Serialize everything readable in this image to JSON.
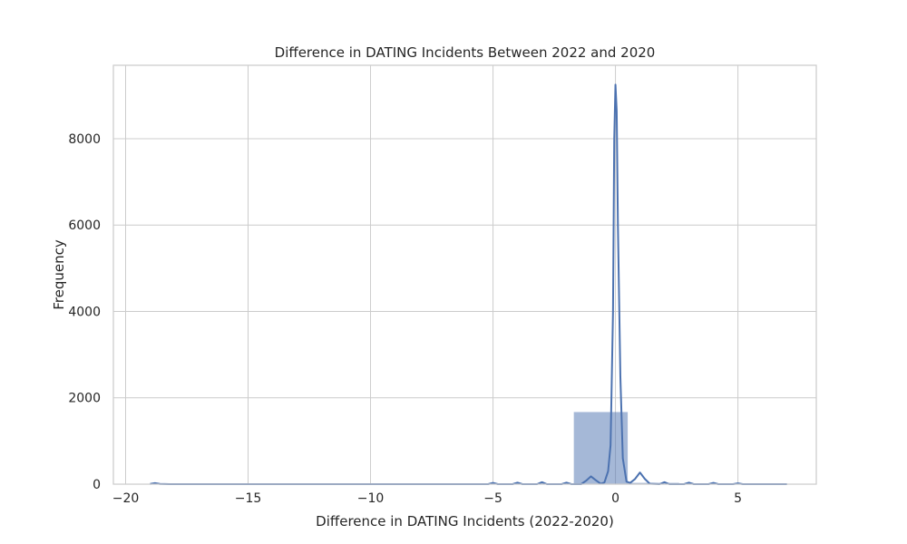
{
  "chart_data": {
    "type": "bar",
    "title": "Difference in DATING Incidents Between 2022 and 2020",
    "xlabel": "Difference in DATING Incidents (2022-2020)",
    "ylabel": "Frequency",
    "xlim": [
      -20.5,
      8.2
    ],
    "ylim": [
      0,
      9700
    ],
    "xticks": [
      -20,
      -15,
      -10,
      -5,
      0,
      5
    ],
    "xtick_labels": [
      "−20",
      "−15",
      "−10",
      "−5",
      "0",
      "5"
    ],
    "yticks": [
      0,
      2000,
      4000,
      6000,
      8000
    ],
    "ytick_labels": [
      "0",
      "2000",
      "4000",
      "6000",
      "8000"
    ],
    "grid": true,
    "bar_color": "#4c72b0",
    "line_color": "#4c72b0",
    "bins": [
      {
        "x0": -19.0,
        "x1": -16.9,
        "count": 10
      },
      {
        "x0": -16.9,
        "x1": -14.8,
        "count": 0
      },
      {
        "x0": -14.8,
        "x1": -12.7,
        "count": 0
      },
      {
        "x0": -12.7,
        "x1": -10.6,
        "count": 0
      },
      {
        "x0": -10.6,
        "x1": -8.5,
        "count": 0
      },
      {
        "x0": -8.5,
        "x1": -6.4,
        "count": 0
      },
      {
        "x0": -6.4,
        "x1": -4.3,
        "count": 8
      },
      {
        "x0": -4.3,
        "x1": -2.2,
        "count": 20
      },
      {
        "x0": -2.2,
        "x1": -1.7,
        "count": 0
      },
      {
        "x0": -1.7,
        "x1": 0.5,
        "count": 1670
      },
      {
        "x0": 0.5,
        "x1": 2.6,
        "count": 30
      },
      {
        "x0": 2.6,
        "x1": 4.7,
        "count": 15
      },
      {
        "x0": 4.7,
        "x1": 6.8,
        "count": 5
      }
    ],
    "kde": {
      "x": [
        -19.0,
        -18.8,
        -18.6,
        -18.2,
        -15.0,
        -10.0,
        -5.2,
        -5.0,
        -4.8,
        -4.2,
        -4.0,
        -3.8,
        -3.2,
        -3.0,
        -2.8,
        -2.2,
        -2.0,
        -1.8,
        -1.4,
        -1.2,
        -1.0,
        -0.8,
        -0.6,
        -0.45,
        -0.3,
        -0.2,
        -0.1,
        -0.05,
        0.0,
        0.05,
        0.1,
        0.2,
        0.3,
        0.45,
        0.6,
        0.8,
        1.0,
        1.2,
        1.4,
        1.8,
        2.0,
        2.2,
        2.8,
        3.0,
        3.2,
        3.8,
        4.0,
        4.2,
        4.8,
        5.0,
        5.2,
        6.0,
        7.0
      ],
      "y": [
        5,
        25,
        5,
        0,
        0,
        0,
        0,
        30,
        0,
        0,
        35,
        0,
        0,
        45,
        0,
        0,
        35,
        0,
        0,
        80,
        180,
        90,
        10,
        40,
        300,
        900,
        4000,
        8000,
        9250,
        8650,
        6000,
        2500,
        600,
        60,
        30,
        120,
        270,
        120,
        10,
        0,
        45,
        0,
        0,
        35,
        0,
        0,
        30,
        0,
        0,
        20,
        0,
        0,
        0
      ]
    }
  }
}
